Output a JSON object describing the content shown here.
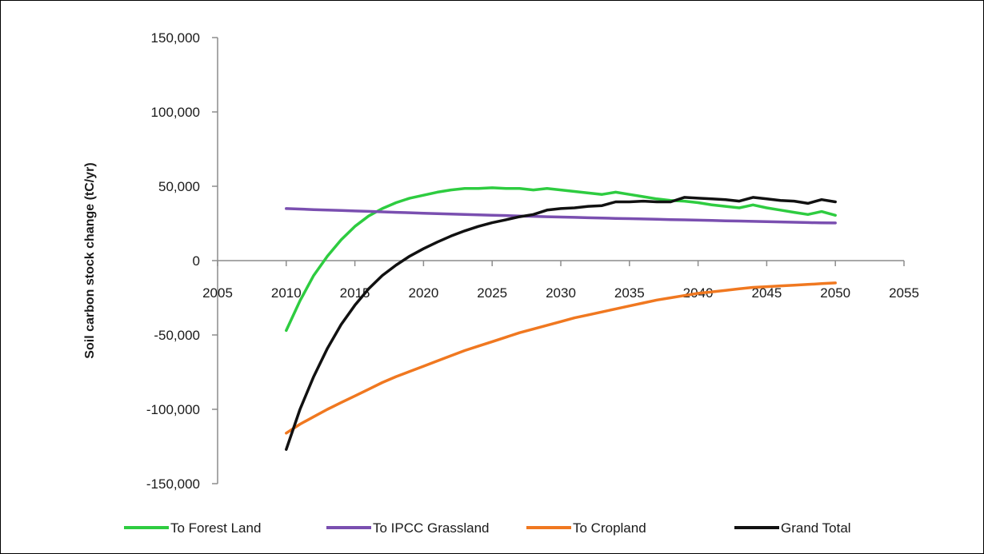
{
  "chart_data": {
    "type": "line",
    "ylabel": "Soil carbon stock change (tC/yr)",
    "xlabel": "",
    "xlim": [
      2005,
      2055
    ],
    "ylim": [
      -150000,
      150000
    ],
    "x_ticks": [
      2005,
      2010,
      2015,
      2020,
      2025,
      2030,
      2035,
      2040,
      2045,
      2050,
      2055
    ],
    "x_tick_labels": [
      "2005",
      "2010",
      "2015",
      "2020",
      "2025",
      "2030",
      "2035",
      "2040",
      "2045",
      "2050",
      "2055"
    ],
    "y_ticks": [
      150000,
      100000,
      50000,
      0,
      -50000,
      -100000,
      -150000
    ],
    "y_tick_labels": [
      "150,000",
      "100,000",
      "50,000",
      "0",
      "-50,000",
      "-100,000",
      "-150,000"
    ],
    "grid": false,
    "legend_position": "bottom",
    "x": [
      2010,
      2011,
      2012,
      2013,
      2014,
      2015,
      2016,
      2017,
      2018,
      2019,
      2020,
      2021,
      2022,
      2023,
      2024,
      2025,
      2026,
      2027,
      2028,
      2029,
      2030,
      2031,
      2032,
      2033,
      2034,
      2035,
      2036,
      2037,
      2038,
      2039,
      2040,
      2041,
      2042,
      2043,
      2044,
      2045,
      2046,
      2047,
      2048,
      2049,
      2050
    ],
    "series": [
      {
        "name": "To Forest Land",
        "color": "#2ecc40",
        "values": [
          -47000,
          -27000,
          -10000,
          3000,
          14000,
          23000,
          30000,
          35000,
          39000,
          42000,
          44000,
          46000,
          47500,
          48500,
          48500,
          49000,
          48500,
          48500,
          47500,
          48500,
          47500,
          46500,
          45500,
          44500,
          46000,
          44500,
          43000,
          41500,
          40500,
          40000,
          39000,
          37500,
          36500,
          35500,
          37500,
          35500,
          34000,
          32500,
          31000,
          33000,
          30500
        ]
      },
      {
        "name": "To IPCC Grassland",
        "color": "#7a4fb0",
        "values": [
          35000,
          34700,
          34300,
          34000,
          33700,
          33400,
          33100,
          32800,
          32500,
          32200,
          31900,
          31600,
          31300,
          31000,
          30800,
          30500,
          30300,
          30000,
          29800,
          29500,
          29300,
          29100,
          28800,
          28600,
          28400,
          28200,
          28000,
          27800,
          27600,
          27400,
          27200,
          27000,
          26800,
          26600,
          26400,
          26200,
          26000,
          25800,
          25600,
          25400,
          25300
        ]
      },
      {
        "name": "To Cropland",
        "color": "#f07820",
        "values": [
          -116000,
          -110000,
          -105000,
          -100000,
          -95500,
          -91000,
          -86500,
          -82000,
          -78000,
          -74500,
          -71000,
          -67500,
          -64000,
          -60500,
          -57500,
          -54500,
          -51500,
          -48500,
          -46000,
          -43500,
          -41000,
          -38500,
          -36500,
          -34500,
          -32500,
          -30500,
          -28500,
          -26500,
          -25000,
          -23500,
          -22000,
          -21000,
          -20000,
          -19000,
          -18000,
          -17500,
          -17000,
          -16500,
          -16000,
          -15500,
          -15000
        ]
      },
      {
        "name": "Grand Total",
        "color": "#111111",
        "values": [
          -127000,
          -100000,
          -78000,
          -59000,
          -43000,
          -30000,
          -19000,
          -10000,
          -3000,
          3000,
          8000,
          12500,
          16500,
          20000,
          23000,
          25500,
          27500,
          29500,
          31000,
          34000,
          35000,
          35500,
          36500,
          37000,
          39500,
          39500,
          40000,
          39500,
          39500,
          42500,
          42000,
          41500,
          41000,
          40000,
          42500,
          41500,
          40500,
          40000,
          38500,
          41000,
          39500
        ]
      }
    ]
  }
}
